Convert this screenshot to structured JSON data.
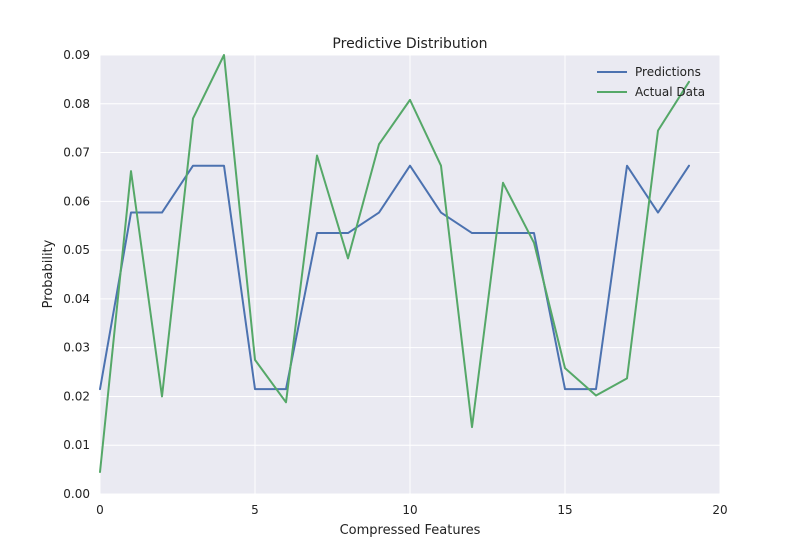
{
  "chart_data": {
    "type": "line",
    "title": "Predictive Distribution",
    "xlabel": "Compressed Features",
    "ylabel": "Probability",
    "xlim": [
      0,
      20
    ],
    "ylim": [
      0,
      0.09
    ],
    "x_ticks": [
      0,
      5,
      10,
      15,
      20
    ],
    "y_ticks": [
      0.0,
      0.01,
      0.02,
      0.03,
      0.04,
      0.05,
      0.06,
      0.07,
      0.08,
      0.09
    ],
    "x_tick_labels": [
      "0",
      "5",
      "10",
      "15",
      "20"
    ],
    "y_tick_labels": [
      "0.00",
      "0.01",
      "0.02",
      "0.03",
      "0.04",
      "0.05",
      "0.06",
      "0.07",
      "0.08",
      "0.09"
    ],
    "grid": true,
    "legend_position": "top-right",
    "x": [
      0,
      1,
      2,
      3,
      4,
      5,
      6,
      7,
      8,
      9,
      10,
      11,
      12,
      13,
      14,
      15,
      16,
      17,
      18,
      19
    ],
    "series": [
      {
        "name": "Predictions",
        "color": "#4c72b0",
        "values": [
          0.0215,
          0.0577,
          0.0577,
          0.0673,
          0.0673,
          0.0215,
          0.0215,
          0.0535,
          0.0535,
          0.0577,
          0.0673,
          0.0577,
          0.0535,
          0.0535,
          0.0535,
          0.0215,
          0.0215,
          0.0673,
          0.0577,
          0.0673
        ]
      },
      {
        "name": "Actual Data",
        "color": "#55a868",
        "values": [
          0.0045,
          0.0662,
          0.02,
          0.077,
          0.09,
          0.0275,
          0.0188,
          0.0694,
          0.0483,
          0.0717,
          0.0808,
          0.0673,
          0.0137,
          0.0638,
          0.0515,
          0.0258,
          0.0202,
          0.0237,
          0.0745,
          0.0845
        ]
      }
    ]
  }
}
